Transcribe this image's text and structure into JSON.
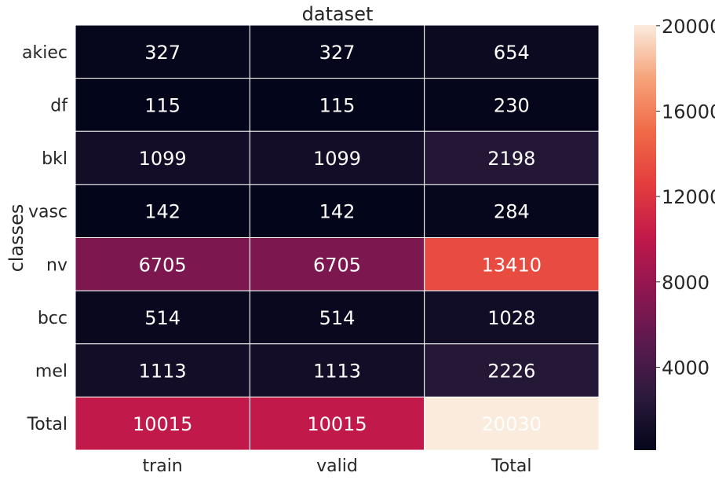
{
  "chart_data": {
    "type": "heatmap",
    "title": "dataset",
    "xlabel": "",
    "ylabel": "classes",
    "columns": [
      "train",
      "valid",
      "Total"
    ],
    "rows": [
      "akiec",
      "df",
      "bkl",
      "vasc",
      "nv",
      "bcc",
      "mel",
      "Total"
    ],
    "values": [
      [
        327,
        327,
        654
      ],
      [
        115,
        115,
        230
      ],
      [
        1099,
        1099,
        2198
      ],
      [
        142,
        142,
        284
      ],
      [
        6705,
        6705,
        13410
      ],
      [
        514,
        514,
        1028
      ],
      [
        1113,
        1113,
        2226
      ],
      [
        10015,
        10015,
        20030
      ]
    ],
    "colorbar": {
      "min": 115,
      "max": 20030,
      "ticks": [
        4000,
        8000,
        12000,
        16000,
        20000
      ],
      "colormap": "rocket"
    },
    "grid": true,
    "grid_color": "#ffffff"
  }
}
